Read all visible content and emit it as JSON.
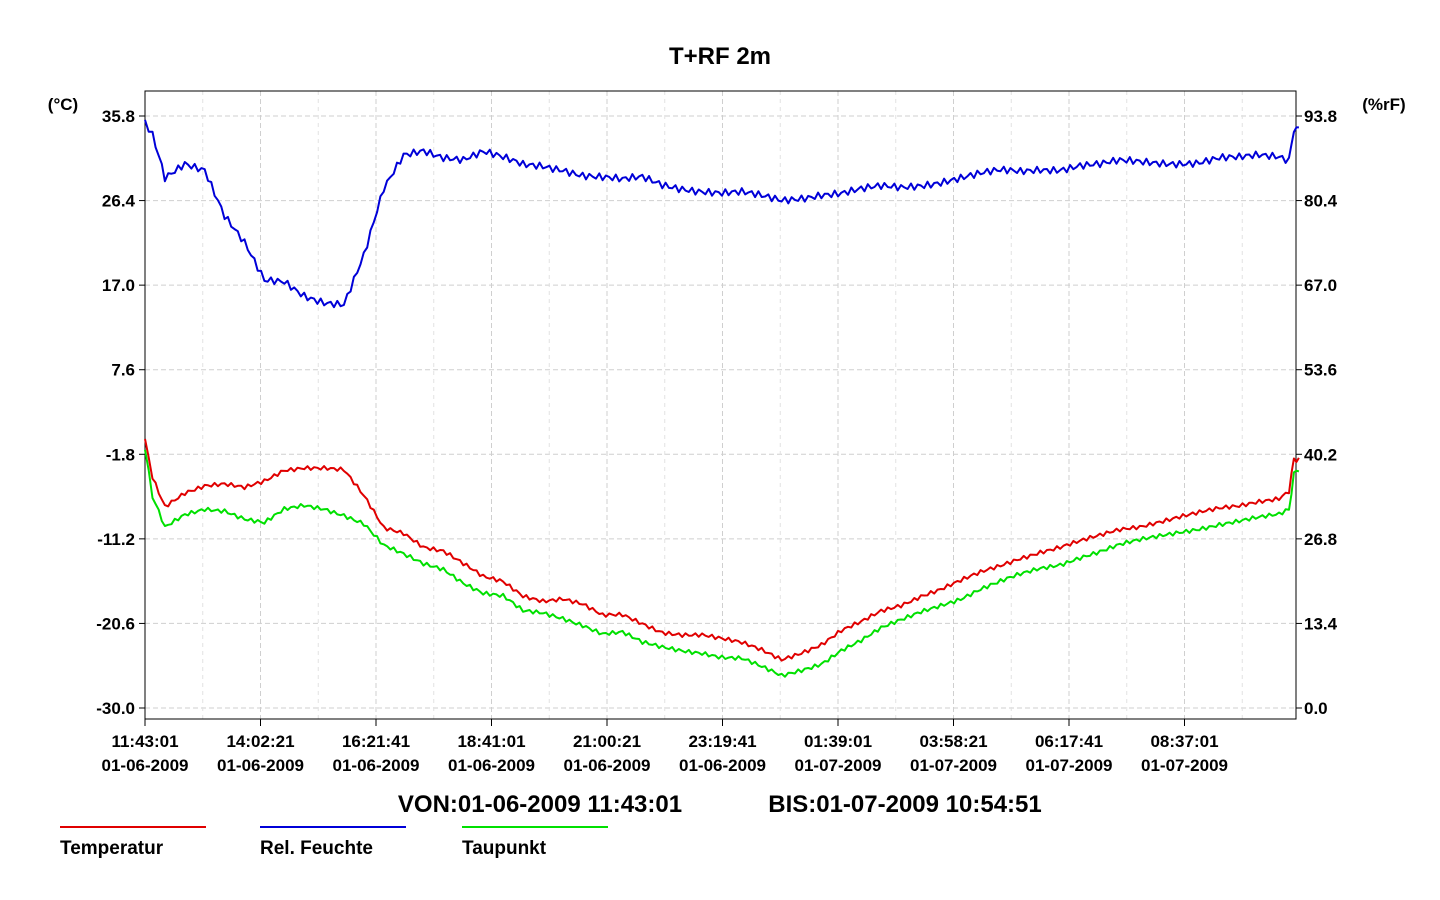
{
  "chart_data": {
    "type": "line",
    "title": "T+RF 2m",
    "left_axis": {
      "unit_label": "(°C)",
      "ticks": [
        "35.8",
        "26.4",
        "17.0",
        "7.6",
        "-1.8",
        "-11.2",
        "-20.6",
        "-30.0"
      ],
      "ylim": [
        -30.0,
        35.8
      ]
    },
    "right_axis": {
      "unit_label": "(%rF)",
      "ticks": [
        "93.8",
        "80.4",
        "67.0",
        "53.6",
        "40.2",
        "26.8",
        "13.4",
        "0.0"
      ],
      "ylim": [
        0.0,
        93.8
      ]
    },
    "x_ticks": [
      {
        "time": "11:43:01",
        "date": "01-06-2009"
      },
      {
        "time": "14:02:21",
        "date": "01-06-2009"
      },
      {
        "time": "16:21:41",
        "date": "01-06-2009"
      },
      {
        "time": "18:41:01",
        "date": "01-06-2009"
      },
      {
        "time": "21:00:21",
        "date": "01-06-2009"
      },
      {
        "time": "23:19:41",
        "date": "01-06-2009"
      },
      {
        "time": "01:39:01",
        "date": "01-07-2009"
      },
      {
        "time": "03:58:21",
        "date": "01-07-2009"
      },
      {
        "time": "06:17:41",
        "date": "01-07-2009"
      },
      {
        "time": "08:37:01",
        "date": "01-07-2009"
      }
    ],
    "range_text": {
      "von": "VON:01-06-2009 11:43:01",
      "bis": "BIS:01-07-2009 10:54:51"
    },
    "grid": true,
    "legend_position": "bottom-left",
    "x_hours": [
      0,
      0.15,
      0.4,
      0.8,
      1.2,
      1.6,
      2.0,
      2.4,
      2.8,
      3.2,
      3.6,
      4.0,
      4.4,
      4.8,
      5.2,
      5.6,
      6.0,
      6.4,
      6.8,
      7.2,
      7.6,
      8.0,
      8.4,
      8.8,
      9.2,
      9.6,
      10.0,
      10.4,
      10.8,
      11.2,
      11.6,
      12.0,
      12.4,
      12.8,
      13.2,
      13.6,
      14.0,
      14.4,
      14.8,
      15.2,
      15.6,
      16.0,
      16.4,
      16.8,
      17.2,
      17.6,
      18.0,
      18.4,
      18.8,
      19.2,
      19.6,
      20.0,
      20.4,
      20.8,
      21.2,
      21.6,
      22.0,
      22.4,
      22.8,
      23.0,
      23.1,
      23.2
    ],
    "series": [
      {
        "name": "Temperatur",
        "color": "#e00000",
        "axis": "left",
        "values": [
          -0.1,
          -4.5,
          -7.5,
          -6.0,
          -5.3,
          -5.2,
          -5.6,
          -4.8,
          -3.5,
          -3.2,
          -3.3,
          -3.6,
          -6.5,
          -10.0,
          -10.5,
          -12.0,
          -12.5,
          -14.0,
          -15.5,
          -16.0,
          -17.5,
          -18.0,
          -17.8,
          -18.5,
          -19.8,
          -19.7,
          -20.6,
          -21.5,
          -21.8,
          -21.9,
          -22.4,
          -22.8,
          -23.5,
          -24.5,
          -23.8,
          -23.0,
          -21.5,
          -20.5,
          -19.2,
          -18.5,
          -17.5,
          -16.8,
          -15.9,
          -15.0,
          -14.2,
          -13.3,
          -12.6,
          -12.1,
          -11.5,
          -10.9,
          -10.2,
          -9.8,
          -9.2,
          -8.7,
          -8.3,
          -7.9,
          -7.6,
          -7.0,
          -6.6,
          -5.8,
          -2.5,
          -2.2
        ]
      },
      {
        "name": "Rel. Feuchte",
        "color": "#0000d8",
        "axis": "right",
        "values": [
          92.5,
          90.5,
          84.0,
          86.5,
          85.5,
          78.0,
          73.5,
          67.5,
          67.5,
          65.5,
          64.5,
          64.0,
          71.5,
          82.0,
          87.5,
          88.5,
          87.5,
          87.0,
          88.0,
          87.0,
          86.0,
          86.0,
          85.5,
          84.5,
          84.0,
          83.5,
          84.0,
          83.0,
          82.5,
          82.0,
          81.5,
          81.5,
          81.0,
          80.5,
          81.0,
          81.5,
          81.5,
          82.0,
          82.5,
          82.5,
          83.0,
          83.5,
          84.0,
          84.5,
          85.0,
          85.0,
          85.5,
          85.5,
          86.0,
          86.0,
          86.5,
          86.5,
          86.5,
          86.5,
          86.5,
          87.0,
          87.0,
          87.5,
          87.5,
          87.0,
          91.5,
          92.0
        ]
      },
      {
        "name": "Taupunkt",
        "color": "#00e000",
        "axis": "left",
        "values": [
          -1.2,
          -6.5,
          -10.0,
          -8.5,
          -7.8,
          -8.0,
          -9.0,
          -9.5,
          -8.0,
          -7.5,
          -7.8,
          -8.5,
          -9.5,
          -12.0,
          -13.0,
          -14.0,
          -14.5,
          -16.0,
          -17.2,
          -17.6,
          -19.3,
          -19.5,
          -20.0,
          -20.7,
          -21.7,
          -21.6,
          -22.8,
          -23.3,
          -23.6,
          -23.8,
          -24.3,
          -24.5,
          -25.5,
          -26.5,
          -25.8,
          -25.0,
          -23.5,
          -22.5,
          -21.2,
          -20.3,
          -19.3,
          -18.5,
          -17.8,
          -16.8,
          -16.0,
          -15.2,
          -14.5,
          -14.0,
          -13.2,
          -12.6,
          -11.9,
          -11.4,
          -10.9,
          -10.4,
          -10.0,
          -9.6,
          -9.3,
          -8.9,
          -8.5,
          -7.9,
          -4.0,
          -3.7
        ]
      }
    ]
  }
}
